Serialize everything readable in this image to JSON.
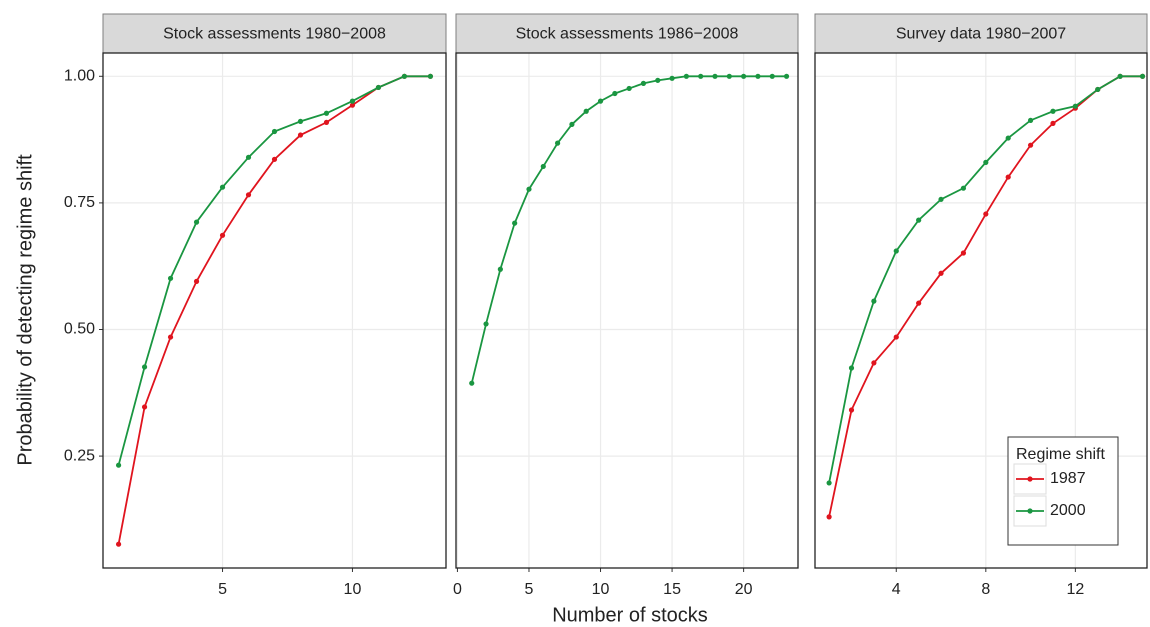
{
  "chart_data": [
    {
      "type": "line",
      "title": "Stock assessments 1980−2008",
      "ylabel": "Probability of detecting regime shift",
      "x": [
        1,
        2,
        3,
        4,
        5,
        6,
        7,
        8,
        9,
        10,
        11,
        12,
        13
      ],
      "xlim": [
        0.4,
        13.6
      ],
      "xticks": [
        5,
        10
      ],
      "ylim": [
        0.029,
        1.046
      ],
      "yticks": [
        {
          "value": 0.25,
          "label": "0.25"
        },
        {
          "value": 0.5,
          "label": "0.50"
        },
        {
          "value": 0.75,
          "label": "0.75"
        },
        {
          "value": 1.0,
          "label": "1.00"
        }
      ],
      "grid": true,
      "series": [
        {
          "name": "1987",
          "color": "#e0141e",
          "values": [
            0.076,
            0.347,
            0.485,
            0.595,
            0.686,
            0.766,
            0.836,
            0.884,
            0.909,
            0.943,
            0.978,
            1.0,
            1.0
          ]
        },
        {
          "name": "2000",
          "color": "#1a9641",
          "values": [
            0.232,
            0.426,
            0.601,
            0.712,
            0.781,
            0.84,
            0.891,
            0.911,
            0.927,
            0.951,
            0.978,
            1.0,
            1.0
          ]
        }
      ]
    },
    {
      "type": "line",
      "title": "Stock assessments 1986−2008",
      "xlabel": "Number of stocks",
      "x": [
        1,
        2,
        3,
        4,
        5,
        6,
        7,
        8,
        9,
        10,
        11,
        12,
        13,
        14,
        15,
        16,
        17,
        18,
        19,
        20,
        21,
        22,
        23
      ],
      "xlim": [
        -0.1,
        23.8
      ],
      "xticks": [
        0,
        5,
        10,
        15,
        20
      ],
      "grid": true,
      "series": [
        {
          "name": "2000",
          "color": "#1a9641",
          "values": [
            0.394,
            0.511,
            0.619,
            0.71,
            0.777,
            0.822,
            0.868,
            0.905,
            0.931,
            0.951,
            0.966,
            0.976,
            0.986,
            0.992,
            0.996,
            1.0,
            1.0,
            1.0,
            1.0,
            1.0,
            1.0,
            1.0,
            1.0
          ]
        }
      ]
    },
    {
      "type": "line",
      "title": "Survey data 1980−2007",
      "legend_title": "Regime shift",
      "legend": "bottom-right",
      "x": [
        1,
        2,
        3,
        4,
        5,
        6,
        7,
        8,
        9,
        10,
        11,
        12,
        13,
        14,
        15
      ],
      "xlim": [
        0.37,
        15.2
      ],
      "xticks": [
        4,
        8,
        12
      ],
      "grid": true,
      "series": [
        {
          "name": "1987",
          "color": "#e0141e",
          "values": [
            0.13,
            0.341,
            0.434,
            0.485,
            0.552,
            0.611,
            0.651,
            0.728,
            0.801,
            0.864,
            0.907,
            0.937,
            0.974,
            1.0,
            1.0
          ]
        },
        {
          "name": "2000",
          "color": "#1a9641",
          "values": [
            0.197,
            0.424,
            0.556,
            0.655,
            0.716,
            0.757,
            0.779,
            0.83,
            0.878,
            0.913,
            0.931,
            0.941,
            0.974,
            1.0,
            1.0
          ]
        }
      ]
    }
  ]
}
